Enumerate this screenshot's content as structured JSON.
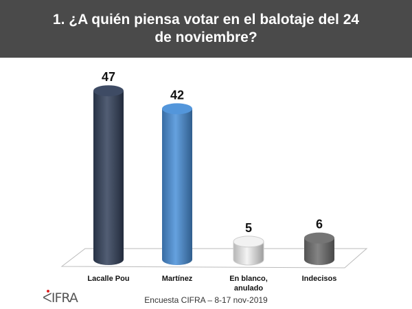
{
  "chart_data": {
    "type": "bar",
    "title": "1. ¿A quién piensa votar en el balotaje del 24 de noviembre?",
    "categories": [
      "Lacalle Pou",
      "Martínez",
      "En blanco, anulado",
      "Indecisos"
    ],
    "category_lines": [
      [
        "Lacalle Pou"
      ],
      [
        "Martínez"
      ],
      [
        "En blanco,",
        "anulado"
      ],
      [
        "Indecisos"
      ]
    ],
    "values": [
      47,
      42,
      5,
      6
    ],
    "colors": [
      "#34425c",
      "#4a90d9",
      "#f2f2f2",
      "#6e6e6e"
    ],
    "style": "3d-cylinder",
    "grid": false,
    "legend": "none",
    "ylim": [
      0,
      47
    ]
  },
  "source": "Encuesta CIFRA – 8-17 nov-2019",
  "logo": "CIFRA"
}
